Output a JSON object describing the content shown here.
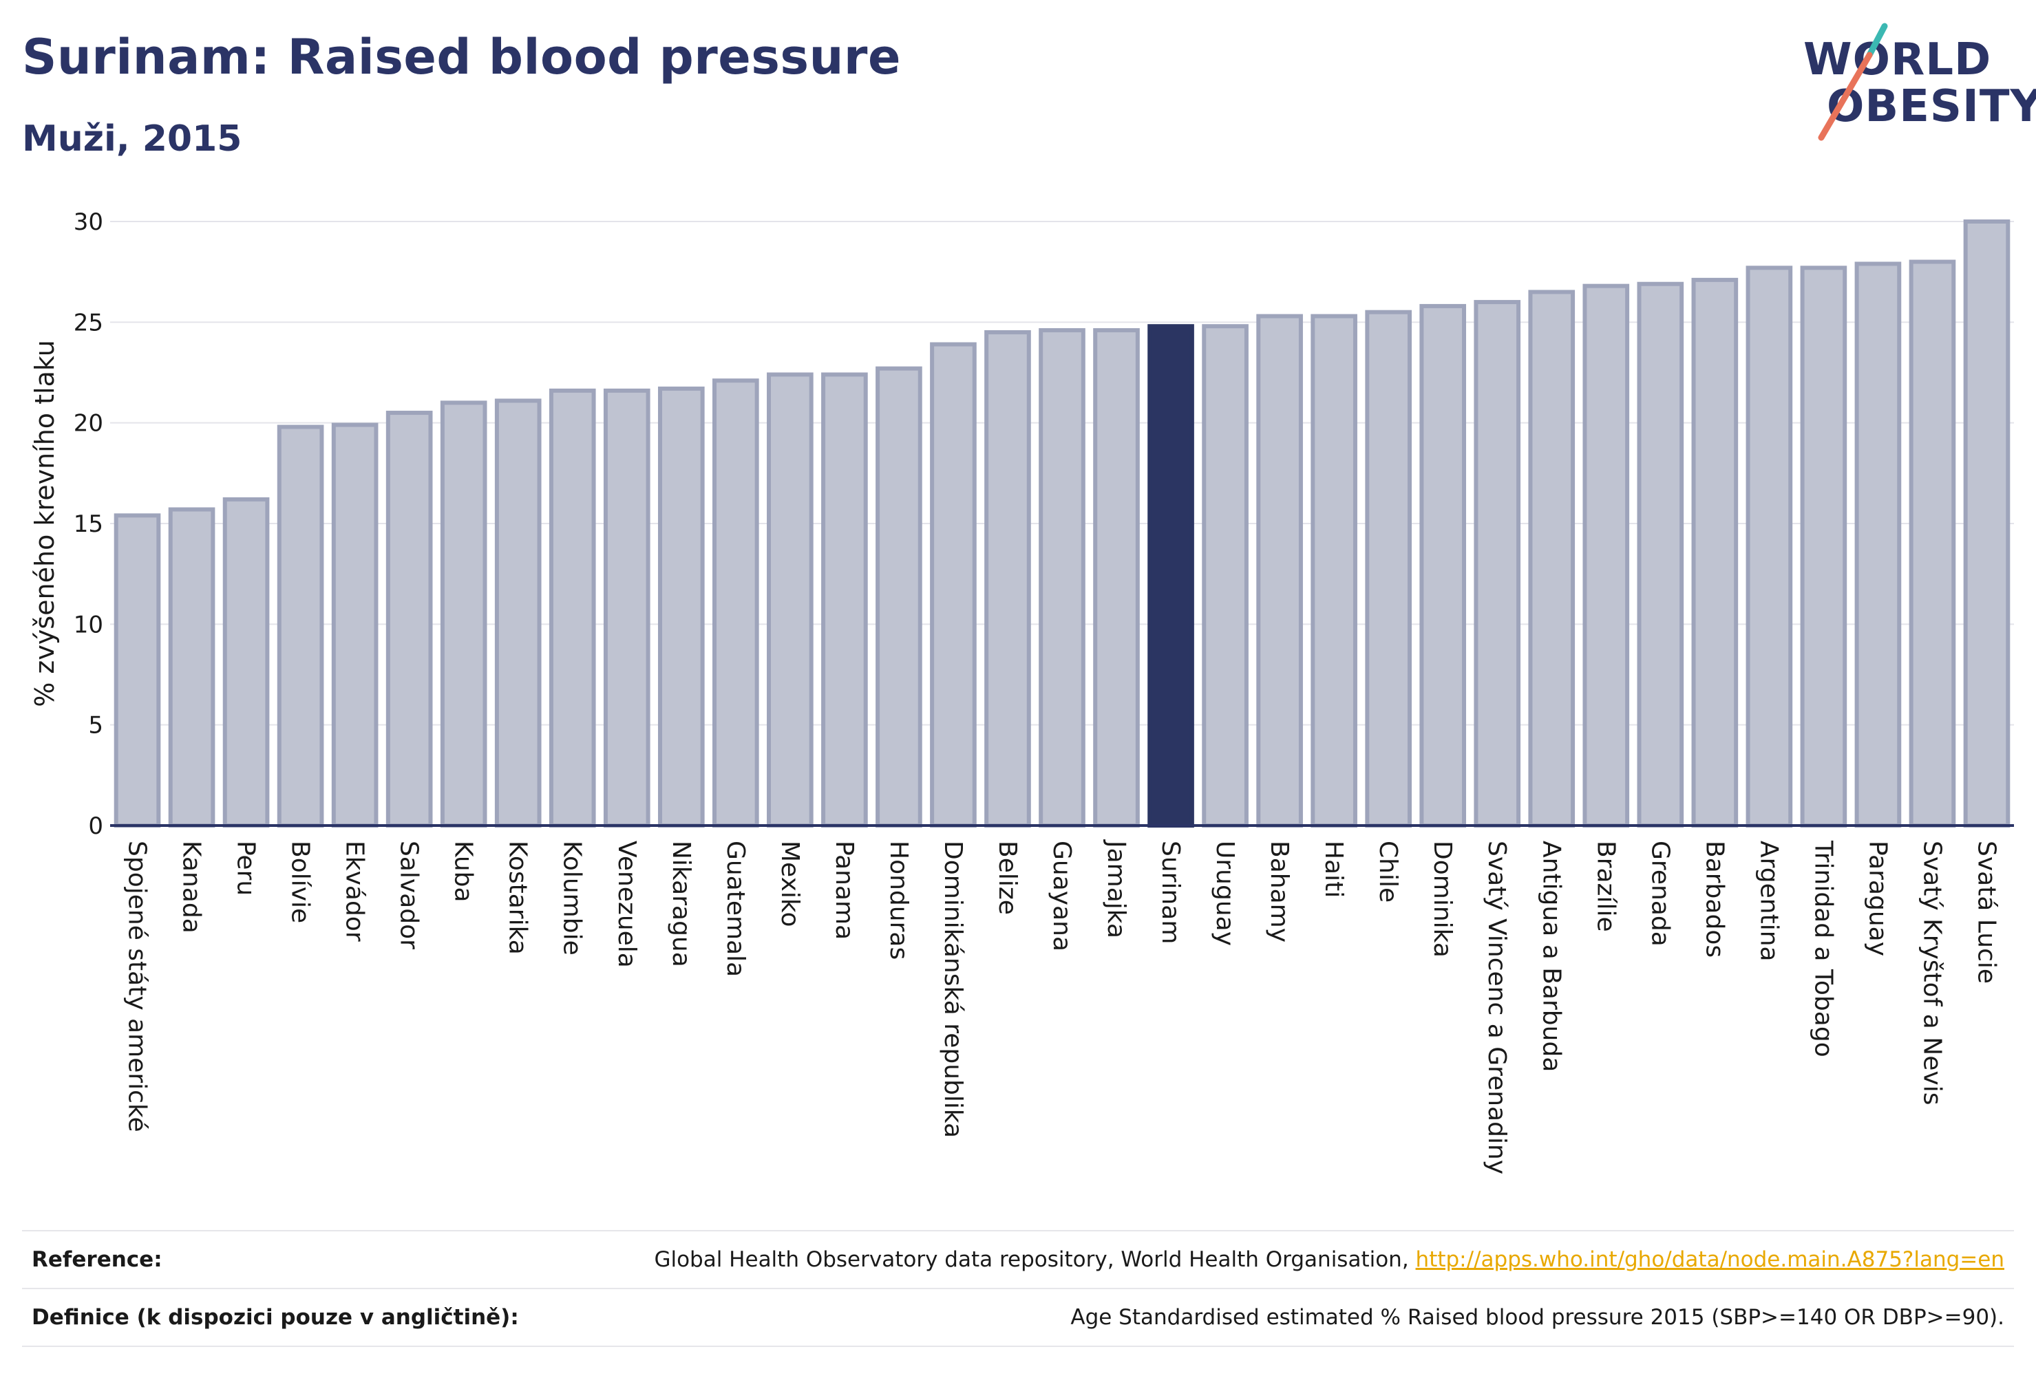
{
  "header": {
    "title": "Surinam: Raised blood pressure",
    "subtitle": "Muži, 2015"
  },
  "logo": {
    "line1": "WORLD",
    "line2": "OBESITY",
    "accent_color": "#e8735a",
    "accent_color2": "#3bb8b2"
  },
  "colors": {
    "bar": "#bfc3d1",
    "bar_stroke": "#9ea4bb",
    "highlight": "#2b3562",
    "axis_text": "#1a1a1a",
    "grid": "#e4e4ea"
  },
  "chart_data": {
    "type": "bar",
    "ylabel": "% zvýšeného krevního tlaku",
    "ylim": [
      0,
      30
    ],
    "yticks": [
      0,
      5,
      10,
      15,
      20,
      25,
      30
    ],
    "grid": true,
    "highlight": "Surinam",
    "categories": [
      "Spojené státy americké",
      "Kanada",
      "Peru",
      "Bolívie",
      "Ekvádor",
      "Salvador",
      "Kuba",
      "Kostarika",
      "Kolumbie",
      "Venezuela",
      "Nikaragua",
      "Guatemala",
      "Mexiko",
      "Panama",
      "Honduras",
      "Dominikánská republika",
      "Belize",
      "Guayana",
      "Jamajka",
      "Surinam",
      "Uruguay",
      "Bahamy",
      "Haiti",
      "Chile",
      "Dominika",
      "Svatý Vincenc a Grenadiny",
      "Antigua a Barbuda",
      "Brazílie",
      "Grenada",
      "Barbados",
      "Argentina",
      "Trinidad a Tobago",
      "Paraguay",
      "Svatý Kryštof a Nevis",
      "Svatá Lucie"
    ],
    "values": [
      15.4,
      15.7,
      16.2,
      19.8,
      19.9,
      20.5,
      21.0,
      21.1,
      21.6,
      21.6,
      21.7,
      22.1,
      22.4,
      22.4,
      22.7,
      23.9,
      24.5,
      24.6,
      24.6,
      24.8,
      24.8,
      25.3,
      25.3,
      25.5,
      25.8,
      26.0,
      26.5,
      26.8,
      26.9,
      27.1,
      27.7,
      27.7,
      27.9,
      28.0,
      30.0
    ]
  },
  "footer": {
    "reference_label": "Reference:",
    "reference_text": "Global Health Observatory data repository, World Health Organisation, ",
    "reference_link": "http://apps.who.int/gho/data/node.main.A875?lang=en",
    "definition_label": "Definice (k dispozici pouze v angličtině):",
    "definition_text": "Age Standardised estimated % Raised blood pressure 2015 (SBP>=140 OR DBP>=90)."
  }
}
